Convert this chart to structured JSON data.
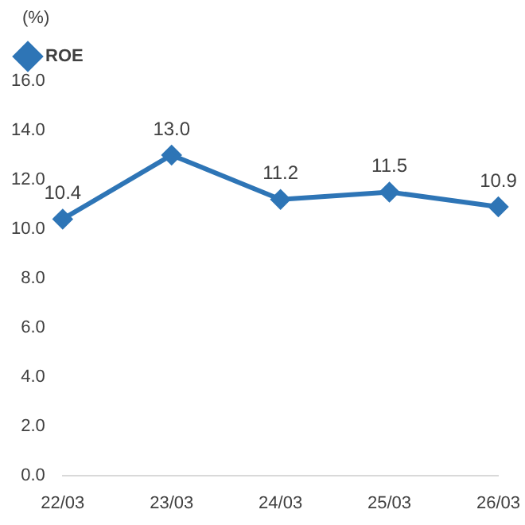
{
  "chart_data": {
    "type": "line",
    "ylabel": "(%)",
    "categories": [
      "22/03",
      "23/03",
      "24/03",
      "25/03",
      "26/03"
    ],
    "series": [
      {
        "name": "ROE",
        "color": "#2e75b6",
        "values": [
          10.4,
          13.0,
          11.2,
          11.5,
          10.9
        ],
        "value_labels": [
          "10.4",
          "13.0",
          "11.2",
          "11.5",
          "10.9"
        ]
      }
    ],
    "ylim": [
      0,
      16
    ],
    "yticks": [
      {
        "value": 0,
        "label": "0.0"
      },
      {
        "value": 2,
        "label": "2.0"
      },
      {
        "value": 4,
        "label": "4.0"
      },
      {
        "value": 6,
        "label": "6.0"
      },
      {
        "value": 8,
        "label": "8.0"
      },
      {
        "value": 10,
        "label": "10.0"
      },
      {
        "value": 12,
        "label": "12.0"
      },
      {
        "value": 14,
        "label": "14.0"
      },
      {
        "value": 16,
        "label": "16.0"
      }
    ],
    "grid": false,
    "legend": "top left",
    "marker": "diamond",
    "line_style": "solid"
  }
}
